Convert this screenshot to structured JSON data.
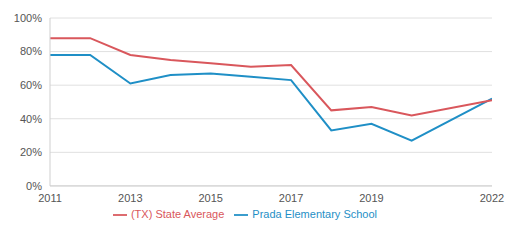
{
  "chart_data": {
    "type": "line",
    "x": [
      2011,
      2012,
      2013,
      2014,
      2015,
      2016,
      2017,
      2018,
      2019,
      2020,
      2022
    ],
    "series": [
      {
        "name": "Prada Elementary School",
        "color": "#1f8fc6",
        "values": [
          78,
          78,
          61,
          66,
          67,
          65,
          63,
          33,
          37,
          27,
          52
        ]
      },
      {
        "name": "(TX) State Average",
        "color": "#d9575c",
        "values": [
          88,
          88,
          78,
          75,
          73,
          71,
          72,
          45,
          47,
          42,
          51
        ]
      }
    ],
    "xlim": [
      2011,
      2022
    ],
    "xticks": [
      2011,
      2013,
      2015,
      2017,
      2019,
      2022
    ],
    "ylim": [
      0,
      100
    ],
    "yticks": [
      {
        "value": 0,
        "label": "0%"
      },
      {
        "value": 20,
        "label": "20%"
      },
      {
        "value": 40,
        "label": "40%"
      },
      {
        "value": 60,
        "label": "60%"
      },
      {
        "value": 80,
        "label": "80%"
      },
      {
        "value": 100,
        "label": "100%"
      }
    ],
    "grid": true,
    "legend": "bottom"
  }
}
